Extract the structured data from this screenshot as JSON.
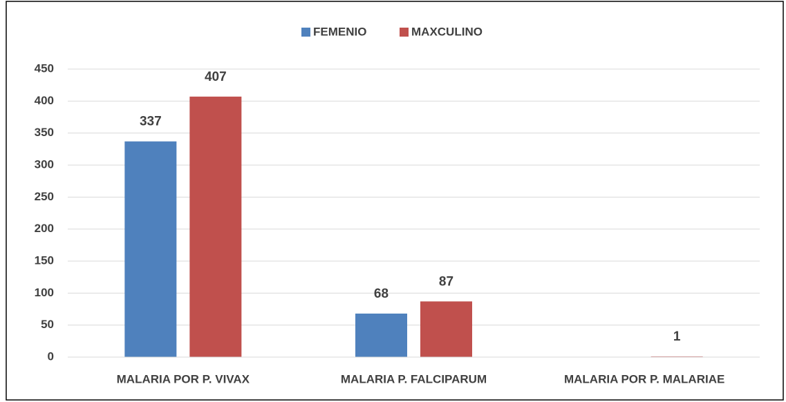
{
  "chart_data": {
    "type": "bar",
    "categories": [
      "MALARIA POR P. VIVAX",
      "MALARIA P. FALCIPARUM",
      "MALARIA POR P. MALARIAE"
    ],
    "series": [
      {
        "name": "FEMENIO",
        "color": "#4f81bd",
        "values": [
          337,
          68,
          null
        ]
      },
      {
        "name": "MAXCULINO",
        "color": "#c0504d",
        "values": [
          407,
          87,
          1
        ]
      }
    ],
    "ylim": [
      0,
      450
    ],
    "yticks": [
      0,
      50,
      100,
      150,
      200,
      250,
      300,
      350,
      400,
      450
    ],
    "grid": true,
    "legend": "top"
  }
}
